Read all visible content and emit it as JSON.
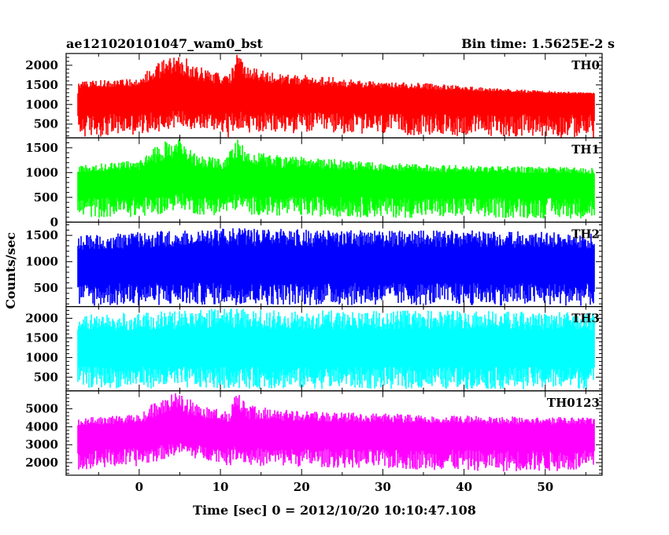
{
  "chart_data": {
    "type": "line",
    "title": "ae121020101047_wam0_bst",
    "bin_time": "Bin time: 1.5625E-2 s",
    "ylabel": "Counts/sec",
    "xlabel": "Time [sec] 0 = 2012/10/20 10:10:47.108",
    "xlim": [
      -9,
      57
    ],
    "x_range": [
      -7.5,
      56
    ],
    "xticks": [
      0,
      10,
      20,
      30,
      40,
      50
    ],
    "panels": [
      {
        "name": "TH0",
        "color": "#ff0000",
        "ylim": [
          150,
          2300
        ],
        "yticks": [
          500,
          1000,
          1500,
          2000
        ],
        "profile": [
          {
            "x": -7.5,
            "low": 150,
            "high": 1600
          },
          {
            "x": 0,
            "low": 230,
            "high": 1700
          },
          {
            "x": 2.5,
            "low": 300,
            "high": 2100
          },
          {
            "x": 5,
            "low": 450,
            "high": 2300
          },
          {
            "x": 7,
            "low": 320,
            "high": 2000
          },
          {
            "x": 10.5,
            "low": 300,
            "high": 1750
          },
          {
            "x": 11,
            "low": 150,
            "high": 1700
          },
          {
            "x": 12,
            "low": 400,
            "high": 2300
          },
          {
            "x": 13.5,
            "low": 250,
            "high": 1950
          },
          {
            "x": 17,
            "low": 260,
            "high": 1800
          },
          {
            "x": 22,
            "low": 280,
            "high": 1750
          },
          {
            "x": 28,
            "low": 230,
            "high": 1600
          },
          {
            "x": 35,
            "low": 200,
            "high": 1550
          },
          {
            "x": 45,
            "low": 180,
            "high": 1400
          },
          {
            "x": 56,
            "low": 150,
            "high": 1300
          }
        ]
      },
      {
        "name": "TH1",
        "color": "#00ff00",
        "ylim": [
          0,
          1700
        ],
        "yticks": [
          0,
          500,
          1000,
          1500
        ],
        "profile": [
          {
            "x": -7.5,
            "low": 80,
            "high": 1150
          },
          {
            "x": 0,
            "low": 100,
            "high": 1250
          },
          {
            "x": 2.5,
            "low": 150,
            "high": 1600
          },
          {
            "x": 5,
            "low": 280,
            "high": 1700
          },
          {
            "x": 7,
            "low": 150,
            "high": 1400
          },
          {
            "x": 10.5,
            "low": 130,
            "high": 1250
          },
          {
            "x": 12,
            "low": 250,
            "high": 1700
          },
          {
            "x": 13.5,
            "low": 150,
            "high": 1450
          },
          {
            "x": 17,
            "low": 120,
            "high": 1350
          },
          {
            "x": 22,
            "low": 110,
            "high": 1300
          },
          {
            "x": 30,
            "low": 90,
            "high": 1200
          },
          {
            "x": 40,
            "low": 80,
            "high": 1150
          },
          {
            "x": 56,
            "low": 70,
            "high": 1100
          }
        ]
      },
      {
        "name": "TH2",
        "color": "#0000ff",
        "ylim": [
          150,
          1750
        ],
        "yticks": [
          500,
          1000,
          1500
        ],
        "profile": [
          {
            "x": -7.5,
            "low": 150,
            "high": 1500
          },
          {
            "x": 10,
            "low": 180,
            "high": 1650
          },
          {
            "x": 25,
            "low": 170,
            "high": 1600
          },
          {
            "x": 40,
            "low": 170,
            "high": 1600
          },
          {
            "x": 56,
            "low": 160,
            "high": 1550
          }
        ]
      },
      {
        "name": "TH3",
        "color": "#00ffff",
        "ylim": [
          150,
          2300
        ],
        "yticks": [
          500,
          1000,
          1500,
          2000
        ],
        "profile": [
          {
            "x": -7.5,
            "low": 220,
            "high": 2100
          },
          {
            "x": 10,
            "low": 200,
            "high": 2250
          },
          {
            "x": 25,
            "low": 200,
            "high": 2200
          },
          {
            "x": 40,
            "low": 190,
            "high": 2200
          },
          {
            "x": 56,
            "low": 200,
            "high": 2150
          }
        ]
      },
      {
        "name": "TH0123",
        "color": "#ff00ff",
        "ylim": [
          1300,
          6000
        ],
        "yticks": [
          2000,
          3000,
          4000,
          5000
        ],
        "profile": [
          {
            "x": -7.5,
            "low": 1600,
            "high": 4500
          },
          {
            "x": 0,
            "low": 1800,
            "high": 4700
          },
          {
            "x": 2.5,
            "low": 2100,
            "high": 5600
          },
          {
            "x": 5,
            "low": 2500,
            "high": 6000
          },
          {
            "x": 7,
            "low": 2200,
            "high": 5300
          },
          {
            "x": 10.5,
            "low": 2000,
            "high": 4900
          },
          {
            "x": 11,
            "low": 1700,
            "high": 4700
          },
          {
            "x": 12,
            "low": 2200,
            "high": 6000
          },
          {
            "x": 13.5,
            "low": 1800,
            "high": 5200
          },
          {
            "x": 17,
            "low": 1800,
            "high": 5000
          },
          {
            "x": 25,
            "low": 1700,
            "high": 4800
          },
          {
            "x": 35,
            "low": 1600,
            "high": 4700
          },
          {
            "x": 45,
            "low": 1500,
            "high": 4600
          },
          {
            "x": 56,
            "low": 1500,
            "high": 4500
          }
        ]
      }
    ],
    "grid": false,
    "legend": "none"
  }
}
